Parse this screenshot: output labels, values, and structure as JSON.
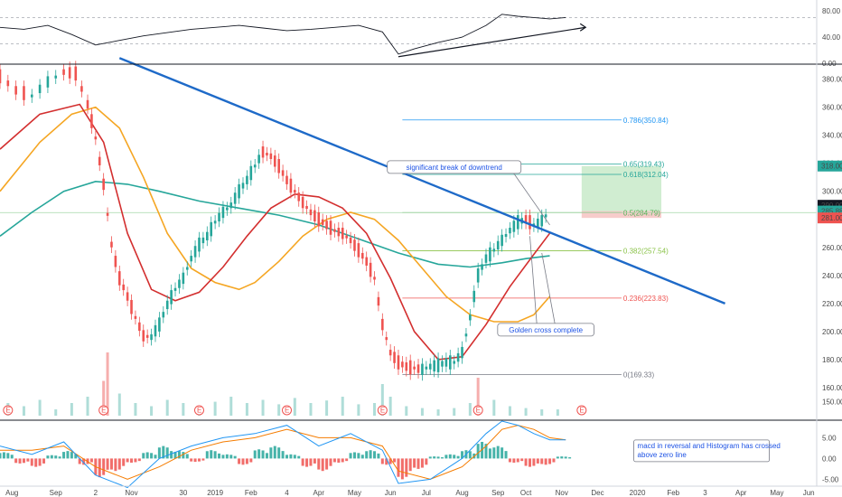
{
  "chart_data": {
    "type": "line",
    "title": "",
    "xlabel": "",
    "ylabel": "",
    "x_ticks": [
      "Aug",
      "Sep",
      "2",
      "Nov",
      "30",
      "2019",
      "Feb",
      "4",
      "Apr",
      "May",
      "Jun",
      "Jul",
      "Aug",
      "Sep",
      "Oct",
      "Nov",
      "Dec",
      "2020",
      "Feb",
      "3",
      "Apr",
      "May",
      "Jun"
    ],
    "price_panel": {
      "ylim": [
        140,
        390
      ],
      "y_ticks": [
        150,
        160,
        180,
        200,
        220,
        240,
        260,
        280,
        300,
        320,
        340,
        360,
        380
      ],
      "y_tick_labels": [
        "150.00",
        "160.00",
        "180.00",
        "200.00",
        "220.00",
        "240.00",
        "260.00",
        "280.00",
        "300.00",
        "320.00",
        "340.00",
        "360.00",
        "380.00"
      ],
      "price_labels": [
        {
          "text": "318.00",
          "value": 318.0,
          "color": "#26a69a"
        },
        {
          "text": "290.00",
          "value": 290.0,
          "color": "#131722"
        },
        {
          "text": "285.88",
          "value": 285.88,
          "color": "#26a69a"
        },
        {
          "text": "281.00",
          "value": 281.0,
          "color": "#ef5350"
        }
      ],
      "price_series": [
        {
          "x": 0,
          "y": 382
        },
        {
          "x": 4,
          "y": 372
        },
        {
          "x": 8,
          "y": 368
        },
        {
          "x": 12,
          "y": 378
        },
        {
          "x": 16,
          "y": 385
        },
        {
          "x": 19,
          "y": 384
        },
        {
          "x": 22,
          "y": 362
        },
        {
          "x": 24,
          "y": 338
        },
        {
          "x": 26,
          "y": 305
        },
        {
          "x": 28,
          "y": 262
        },
        {
          "x": 30,
          "y": 238
        },
        {
          "x": 32,
          "y": 225
        },
        {
          "x": 34,
          "y": 210
        },
        {
          "x": 36,
          "y": 197
        },
        {
          "x": 38,
          "y": 196
        },
        {
          "x": 40,
          "y": 205
        },
        {
          "x": 42,
          "y": 219
        },
        {
          "x": 44,
          "y": 230
        },
        {
          "x": 46,
          "y": 238
        },
        {
          "x": 48,
          "y": 252
        },
        {
          "x": 50,
          "y": 262
        },
        {
          "x": 52,
          "y": 268
        },
        {
          "x": 54,
          "y": 278
        },
        {
          "x": 56,
          "y": 285
        },
        {
          "x": 58,
          "y": 290
        },
        {
          "x": 60,
          "y": 300
        },
        {
          "x": 62,
          "y": 308
        },
        {
          "x": 64,
          "y": 318
        },
        {
          "x": 66,
          "y": 328
        },
        {
          "x": 68,
          "y": 325
        },
        {
          "x": 70,
          "y": 318
        },
        {
          "x": 72,
          "y": 308
        },
        {
          "x": 74,
          "y": 300
        },
        {
          "x": 76,
          "y": 292
        },
        {
          "x": 78,
          "y": 285
        },
        {
          "x": 80,
          "y": 280
        },
        {
          "x": 82,
          "y": 276
        },
        {
          "x": 84,
          "y": 272
        },
        {
          "x": 86,
          "y": 270
        },
        {
          "x": 88,
          "y": 265
        },
        {
          "x": 90,
          "y": 258
        },
        {
          "x": 92,
          "y": 250
        },
        {
          "x": 94,
          "y": 238
        },
        {
          "x": 96,
          "y": 205
        },
        {
          "x": 98,
          "y": 185
        },
        {
          "x": 100,
          "y": 178
        },
        {
          "x": 102,
          "y": 175
        },
        {
          "x": 104,
          "y": 174
        },
        {
          "x": 106,
          "y": 173
        },
        {
          "x": 108,
          "y": 175
        },
        {
          "x": 110,
          "y": 176
        },
        {
          "x": 112,
          "y": 178
        },
        {
          "x": 114,
          "y": 178
        },
        {
          "x": 116,
          "y": 185
        },
        {
          "x": 118,
          "y": 210
        },
        {
          "x": 120,
          "y": 240
        },
        {
          "x": 122,
          "y": 252
        },
        {
          "x": 124,
          "y": 258
        },
        {
          "x": 126,
          "y": 265
        },
        {
          "x": 128,
          "y": 272
        },
        {
          "x": 130,
          "y": 278
        },
        {
          "x": 132,
          "y": 280
        },
        {
          "x": 134,
          "y": 276
        },
        {
          "x": 136,
          "y": 279
        },
        {
          "x": 138,
          "y": 286
        }
      ],
      "ma_red": [
        {
          "x": 0,
          "y": 330
        },
        {
          "x": 10,
          "y": 355
        },
        {
          "x": 20,
          "y": 362
        },
        {
          "x": 26,
          "y": 335
        },
        {
          "x": 32,
          "y": 270
        },
        {
          "x": 38,
          "y": 230
        },
        {
          "x": 44,
          "y": 222
        },
        {
          "x": 50,
          "y": 228
        },
        {
          "x": 56,
          "y": 246
        },
        {
          "x": 62,
          "y": 268
        },
        {
          "x": 68,
          "y": 288
        },
        {
          "x": 74,
          "y": 298
        },
        {
          "x": 80,
          "y": 296
        },
        {
          "x": 86,
          "y": 288
        },
        {
          "x": 92,
          "y": 270
        },
        {
          "x": 98,
          "y": 238
        },
        {
          "x": 104,
          "y": 200
        },
        {
          "x": 110,
          "y": 180
        },
        {
          "x": 116,
          "y": 182
        },
        {
          "x": 122,
          "y": 205
        },
        {
          "x": 128,
          "y": 232
        },
        {
          "x": 134,
          "y": 255
        },
        {
          "x": 138,
          "y": 270
        }
      ],
      "ma_orange": [
        {
          "x": 0,
          "y": 300
        },
        {
          "x": 10,
          "y": 335
        },
        {
          "x": 18,
          "y": 355
        },
        {
          "x": 24,
          "y": 360
        },
        {
          "x": 30,
          "y": 345
        },
        {
          "x": 36,
          "y": 310
        },
        {
          "x": 42,
          "y": 270
        },
        {
          "x": 48,
          "y": 245
        },
        {
          "x": 54,
          "y": 235
        },
        {
          "x": 60,
          "y": 230
        },
        {
          "x": 64,
          "y": 235
        },
        {
          "x": 70,
          "y": 250
        },
        {
          "x": 76,
          "y": 268
        },
        {
          "x": 82,
          "y": 280
        },
        {
          "x": 88,
          "y": 285
        },
        {
          "x": 94,
          "y": 280
        },
        {
          "x": 100,
          "y": 265
        },
        {
          "x": 106,
          "y": 245
        },
        {
          "x": 112,
          "y": 225
        },
        {
          "x": 118,
          "y": 212
        },
        {
          "x": 124,
          "y": 207
        },
        {
          "x": 130,
          "y": 207
        },
        {
          "x": 134,
          "y": 212
        },
        {
          "x": 138,
          "y": 225
        }
      ],
      "ma_teal": [
        {
          "x": 0,
          "y": 268
        },
        {
          "x": 8,
          "y": 285
        },
        {
          "x": 16,
          "y": 300
        },
        {
          "x": 24,
          "y": 307
        },
        {
          "x": 32,
          "y": 305
        },
        {
          "x": 40,
          "y": 300
        },
        {
          "x": 50,
          "y": 293
        },
        {
          "x": 60,
          "y": 288
        },
        {
          "x": 70,
          "y": 283
        },
        {
          "x": 80,
          "y": 276
        },
        {
          "x": 90,
          "y": 266
        },
        {
          "x": 100,
          "y": 256
        },
        {
          "x": 110,
          "y": 248
        },
        {
          "x": 118,
          "y": 246
        },
        {
          "x": 126,
          "y": 249
        },
        {
          "x": 132,
          "y": 252
        },
        {
          "x": 138,
          "y": 254
        }
      ],
      "trendline": {
        "from": {
          "x": 30,
          "y": 395
        },
        "to": {
          "x": 182,
          "y": 220
        }
      },
      "fib_levels": [
        {
          "label": "0.786(350.84)",
          "value": 350.84,
          "color": "#2196f3"
        },
        {
          "label": "0.65(319.43)",
          "value": 319.43,
          "color": "#26a69a"
        },
        {
          "label": "0.618(312.04)",
          "value": 312.04,
          "color": "#26a69a"
        },
        {
          "label": "0.5(284.79)",
          "value": 284.79,
          "color": "#4caf50"
        },
        {
          "label": "0.382(257.54)",
          "value": 257.54,
          "color": "#8bc34a"
        },
        {
          "label": "0.236(223.83)",
          "value": 223.83,
          "color": "#ef5350"
        },
        {
          "label": "0(169.33)",
          "value": 169.33,
          "color": "#787b86"
        }
      ],
      "target_zone": {
        "top": 318.0,
        "entry": 285.88,
        "stop": 281.0,
        "x_start": 146,
        "x_end": 166
      },
      "annotations": [
        {
          "text": "significant break of downtrend",
          "color": "#1e53e5",
          "x": 114,
          "y": 316
        },
        {
          "text": "Golden cross complete",
          "color": "#1e53e5",
          "x": 137,
          "y": 200
        }
      ]
    },
    "rsi_panel": {
      "ylim": [
        0,
        90
      ],
      "y_ticks": [
        0,
        40,
        80
      ],
      "y_tick_labels": [
        "0.00",
        "40.00",
        "80.00"
      ],
      "levels": [
        30,
        70
      ],
      "series": [
        {
          "x": 0,
          "y": 55
        },
        {
          "x": 6,
          "y": 52
        },
        {
          "x": 12,
          "y": 58
        },
        {
          "x": 18,
          "y": 44
        },
        {
          "x": 24,
          "y": 28
        },
        {
          "x": 30,
          "y": 35
        },
        {
          "x": 36,
          "y": 42
        },
        {
          "x": 42,
          "y": 47
        },
        {
          "x": 48,
          "y": 52
        },
        {
          "x": 54,
          "y": 55
        },
        {
          "x": 60,
          "y": 58
        },
        {
          "x": 66,
          "y": 54
        },
        {
          "x": 72,
          "y": 50
        },
        {
          "x": 78,
          "y": 52
        },
        {
          "x": 84,
          "y": 55
        },
        {
          "x": 90,
          "y": 58
        },
        {
          "x": 96,
          "y": 48
        },
        {
          "x": 100,
          "y": 14
        },
        {
          "x": 104,
          "y": 22
        },
        {
          "x": 110,
          "y": 32
        },
        {
          "x": 116,
          "y": 40
        },
        {
          "x": 122,
          "y": 58
        },
        {
          "x": 126,
          "y": 75
        },
        {
          "x": 130,
          "y": 72
        },
        {
          "x": 134,
          "y": 70
        },
        {
          "x": 138,
          "y": 68
        },
        {
          "x": 142,
          "y": 70
        }
      ],
      "trendline": {
        "from": {
          "x": 100,
          "y": 10
        },
        "to": {
          "x": 147,
          "y": 55
        }
      }
    },
    "macd_panel": {
      "ylim": [
        -6,
        9
      ],
      "y_ticks": [
        -5,
        0,
        5
      ],
      "y_tick_labels": [
        "-5.00",
        "0.00",
        "5.00"
      ],
      "annotation": "macd in reversal and Histogram has crossed above zero line",
      "histogram": [
        {
          "x": 0,
          "y": 1.5
        },
        {
          "x": 4,
          "y": -1.2
        },
        {
          "x": 8,
          "y": -2
        },
        {
          "x": 12,
          "y": 0.8
        },
        {
          "x": 16,
          "y": 1.8
        },
        {
          "x": 20,
          "y": -1.5
        },
        {
          "x": 24,
          "y": -4.5
        },
        {
          "x": 28,
          "y": -3
        },
        {
          "x": 32,
          "y": -1
        },
        {
          "x": 36,
          "y": 1.5
        },
        {
          "x": 40,
          "y": 3
        },
        {
          "x": 44,
          "y": 1.8
        },
        {
          "x": 48,
          "y": -0.8
        },
        {
          "x": 52,
          "y": 2
        },
        {
          "x": 56,
          "y": 1
        },
        {
          "x": 60,
          "y": -1.5
        },
        {
          "x": 64,
          "y": 2.2
        },
        {
          "x": 68,
          "y": 3
        },
        {
          "x": 72,
          "y": 1
        },
        {
          "x": 76,
          "y": -2
        },
        {
          "x": 80,
          "y": -3
        },
        {
          "x": 84,
          "y": -1
        },
        {
          "x": 88,
          "y": 1.5
        },
        {
          "x": 92,
          "y": 2
        },
        {
          "x": 96,
          "y": -1.5
        },
        {
          "x": 100,
          "y": -5
        },
        {
          "x": 104,
          "y": -2.5
        },
        {
          "x": 108,
          "y": 0.5
        },
        {
          "x": 112,
          "y": 1
        },
        {
          "x": 116,
          "y": 2
        },
        {
          "x": 120,
          "y": 4
        },
        {
          "x": 124,
          "y": 3
        },
        {
          "x": 128,
          "y": -1
        },
        {
          "x": 132,
          "y": -2
        },
        {
          "x": 136,
          "y": -1.5
        },
        {
          "x": 140,
          "y": 0.5
        }
      ],
      "macd_line": [
        {
          "x": 0,
          "y": 3
        },
        {
          "x": 8,
          "y": 1
        },
        {
          "x": 16,
          "y": 4
        },
        {
          "x": 24,
          "y": -4
        },
        {
          "x": 32,
          "y": -7
        },
        {
          "x": 40,
          "y": 0
        },
        {
          "x": 48,
          "y": 3
        },
        {
          "x": 56,
          "y": 5
        },
        {
          "x": 64,
          "y": 6
        },
        {
          "x": 72,
          "y": 8
        },
        {
          "x": 80,
          "y": 3
        },
        {
          "x": 88,
          "y": 6
        },
        {
          "x": 96,
          "y": 2
        },
        {
          "x": 100,
          "y": -6
        },
        {
          "x": 108,
          "y": -5
        },
        {
          "x": 116,
          "y": 0
        },
        {
          "x": 122,
          "y": 6
        },
        {
          "x": 126,
          "y": 9
        },
        {
          "x": 130,
          "y": 8
        },
        {
          "x": 134,
          "y": 6
        },
        {
          "x": 138,
          "y": 4.5
        },
        {
          "x": 142,
          "y": 4.5
        }
      ],
      "signal_line": [
        {
          "x": 0,
          "y": 2
        },
        {
          "x": 8,
          "y": 2
        },
        {
          "x": 16,
          "y": 3
        },
        {
          "x": 24,
          "y": -2
        },
        {
          "x": 32,
          "y": -5
        },
        {
          "x": 40,
          "y": -2
        },
        {
          "x": 48,
          "y": 2
        },
        {
          "x": 56,
          "y": 4
        },
        {
          "x": 64,
          "y": 5
        },
        {
          "x": 72,
          "y": 7
        },
        {
          "x": 80,
          "y": 5
        },
        {
          "x": 88,
          "y": 5
        },
        {
          "x": 96,
          "y": 3
        },
        {
          "x": 100,
          "y": -3
        },
        {
          "x": 108,
          "y": -5
        },
        {
          "x": 116,
          "y": -2
        },
        {
          "x": 122,
          "y": 3
        },
        {
          "x": 126,
          "y": 7
        },
        {
          "x": 130,
          "y": 8
        },
        {
          "x": 134,
          "y": 7
        },
        {
          "x": 138,
          "y": 5
        },
        {
          "x": 142,
          "y": 4.5
        }
      ]
    },
    "volume": [
      {
        "x": 2,
        "v": 0.2
      },
      {
        "x": 6,
        "v": 0.15
      },
      {
        "x": 10,
        "v": 0.25
      },
      {
        "x": 14,
        "v": 0.1
      },
      {
        "x": 18,
        "v": 0.2
      },
      {
        "x": 22,
        "v": 0.3
      },
      {
        "x": 26,
        "v": 0.55
      },
      {
        "x": 27,
        "v": 1.0
      },
      {
        "x": 30,
        "v": 0.35
      },
      {
        "x": 34,
        "v": 0.2
      },
      {
        "x": 38,
        "v": 0.15
      },
      {
        "x": 42,
        "v": 0.25
      },
      {
        "x": 46,
        "v": 0.2
      },
      {
        "x": 50,
        "v": 0.15
      },
      {
        "x": 54,
        "v": 0.22
      },
      {
        "x": 58,
        "v": 0.3
      },
      {
        "x": 62,
        "v": 0.2
      },
      {
        "x": 66,
        "v": 0.25
      },
      {
        "x": 70,
        "v": 0.18
      },
      {
        "x": 74,
        "v": 0.28
      },
      {
        "x": 78,
        "v": 0.2
      },
      {
        "x": 82,
        "v": 0.24
      },
      {
        "x": 86,
        "v": 0.3
      },
      {
        "x": 90,
        "v": 0.18
      },
      {
        "x": 94,
        "v": 0.2
      },
      {
        "x": 96,
        "v": 0.5
      },
      {
        "x": 98,
        "v": 0.3
      },
      {
        "x": 102,
        "v": 0.15
      },
      {
        "x": 106,
        "v": 0.12
      },
      {
        "x": 110,
        "v": 0.1
      },
      {
        "x": 114,
        "v": 0.12
      },
      {
        "x": 118,
        "v": 0.2
      },
      {
        "x": 120,
        "v": 0.6
      },
      {
        "x": 124,
        "v": 0.25
      },
      {
        "x": 128,
        "v": 0.15
      },
      {
        "x": 132,
        "v": 0.12
      },
      {
        "x": 136,
        "v": 0.1
      },
      {
        "x": 140,
        "v": 0.1
      }
    ],
    "earnings_markers": [
      2,
      26,
      50,
      72,
      96,
      120,
      146
    ]
  }
}
